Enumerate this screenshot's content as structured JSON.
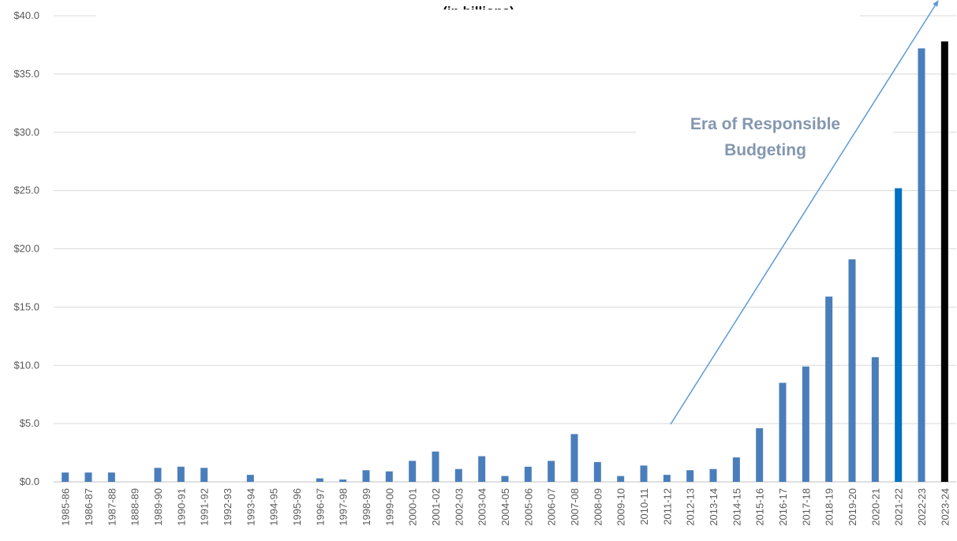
{
  "chart_data": {
    "type": "bar",
    "subtitle": "(in billions)",
    "annotation": [
      "Era of Responsible",
      "Budgeting"
    ],
    "ylim": [
      0,
      40
    ],
    "yticks": [
      "$0.0",
      "$5.0",
      "$10.0",
      "$15.0",
      "$20.0",
      "$25.0",
      "$30.0",
      "$35.0",
      "$40.0"
    ],
    "ytick_values": [
      0,
      5,
      10,
      15,
      20,
      25,
      30,
      35,
      40
    ],
    "grid": true,
    "categories": [
      "1985-86",
      "1986-87",
      "1987-88",
      "1888-89",
      "1989-90",
      "1990-91",
      "1991-92",
      "1992-93",
      "1993-94",
      "1994-95",
      "1995-96",
      "1996-97",
      "1997-98",
      "1998-99",
      "1999-00",
      "2000-01",
      "2001-02",
      "2002-03",
      "2003-04",
      "2004-05",
      "2005-06",
      "2006-07",
      "2007-08",
      "2008-09",
      "2009-10",
      "2010-11",
      "2011-12",
      "2012-13",
      "2013-14",
      "2014-15",
      "2015-16",
      "2016-17",
      "2017-18",
      "2018-19",
      "2019-20",
      "2020-21",
      "2021-22",
      "2022-23",
      "2023-24"
    ],
    "values": [
      0.8,
      0.8,
      0.8,
      0,
      1.2,
      1.3,
      1.2,
      0,
      0.6,
      0,
      0,
      0.3,
      0.2,
      1.0,
      0.9,
      1.8,
      2.6,
      1.1,
      2.2,
      0.5,
      1.3,
      1.8,
      4.1,
      1.7,
      0.5,
      1.4,
      0.6,
      1.0,
      1.1,
      2.1,
      4.6,
      8.5,
      9.9,
      15.9,
      19.1,
      10.7,
      25.2,
      37.2,
      37.8
    ],
    "colors": {
      "default": "#4a7ebb",
      "highlight_2021_22": "#0070c0",
      "latest_2023_24": "#000000",
      "trend_arrow": "#5b9bd5",
      "annotation_text": "#8497b0",
      "gridline": "#d9d9d9"
    }
  }
}
